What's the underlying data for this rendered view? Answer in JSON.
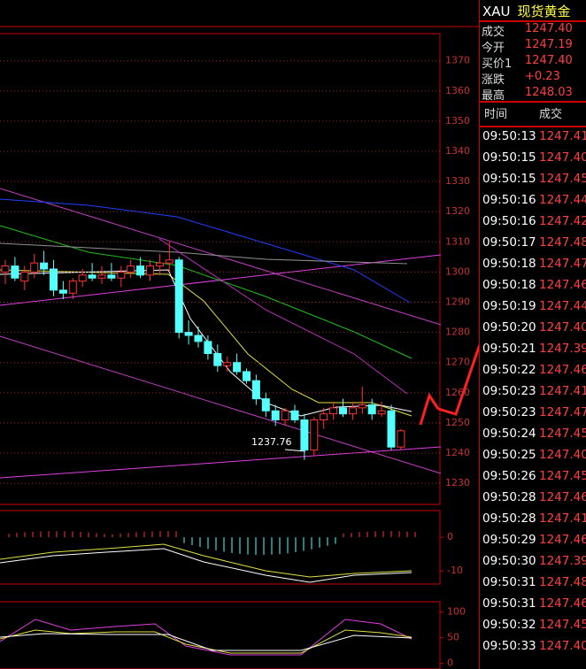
{
  "header": {
    "symbol": "XAU",
    "name": "现货黄金"
  },
  "quote": [
    {
      "label": "成交",
      "value": "1247.40"
    },
    {
      "label": "今开",
      "value": "1247.19"
    },
    {
      "label": "买价1",
      "value": "1247.40"
    },
    {
      "label": "涨跌",
      "value": "+0.23"
    },
    {
      "label": "最高",
      "value": "1248.03"
    }
  ],
  "trades_header": {
    "time": "时间",
    "price": "成交"
  },
  "trades": [
    [
      "09:50:13",
      "1247.41"
    ],
    [
      "09:50:15",
      "1247.40"
    ],
    [
      "09:50:15",
      "1247.45"
    ],
    [
      "09:50:16",
      "1247.44"
    ],
    [
      "09:50:16",
      "1247.42"
    ],
    [
      "09:50:17",
      "1247.48"
    ],
    [
      "09:50:18",
      "1247.47"
    ],
    [
      "09:50:18",
      "1247.46"
    ],
    [
      "09:50:19",
      "1247.44"
    ],
    [
      "09:50:20",
      "1247.40"
    ],
    [
      "09:50:21",
      "1247.39"
    ],
    [
      "09:50:22",
      "1247.46"
    ],
    [
      "09:50:23",
      "1247.41"
    ],
    [
      "09:50:23",
      "1247.47"
    ],
    [
      "09:50:24",
      "1247.45"
    ],
    [
      "09:50:25",
      "1247.40"
    ],
    [
      "09:50:26",
      "1247.45"
    ],
    [
      "09:50:28",
      "1247.46"
    ],
    [
      "09:50:28",
      "1247.41"
    ],
    [
      "09:50:29",
      "1247.46"
    ],
    [
      "09:50:30",
      "1247.39"
    ],
    [
      "09:50:31",
      "1247.48"
    ],
    [
      "09:50:31",
      "1247.46"
    ],
    [
      "09:50:32",
      "1247.45"
    ],
    [
      "09:50:33",
      "1247.40"
    ]
  ],
  "chart_data": {
    "type": "candlestick",
    "annotation": "1237.76",
    "ylim": [
      1223,
      1379
    ],
    "yticks": [
      1230,
      1240,
      1250,
      1260,
      1270,
      1280,
      1290,
      1300,
      1310,
      1320,
      1330,
      1340,
      1350,
      1360,
      1370
    ],
    "up_color": "#ff3232",
    "down_color": "#54ffff",
    "candles": {
      "open": [
        1300,
        1302,
        1297,
        1300,
        1303,
        1301,
        1294,
        1293,
        1297,
        1299,
        1298,
        1299,
        1298,
        1300,
        1302,
        1299,
        1302,
        1303,
        1304,
        1280,
        1279,
        1277,
        1273,
        1269,
        1270,
        1267,
        1264,
        1258,
        1254,
        1251,
        1254,
        1251,
        1241,
        1251,
        1253,
        1255,
        1253,
        1255,
        1256,
        1253,
        1254,
        1242
      ],
      "high": [
        1304,
        1305,
        1302,
        1306,
        1307,
        1304,
        1297,
        1298,
        1301,
        1303,
        1302,
        1303,
        1302,
        1304,
        1305,
        1304,
        1306,
        1310,
        1305,
        1284,
        1282,
        1279,
        1276,
        1272,
        1273,
        1268,
        1266,
        1260,
        1256,
        1255,
        1256,
        1253,
        1252,
        1255,
        1257,
        1258,
        1257,
        1262,
        1258,
        1257,
        1256,
        1248
      ],
      "low": [
        1296,
        1297,
        1294,
        1298,
        1299,
        1292,
        1291,
        1291,
        1295,
        1297,
        1296,
        1297,
        1295,
        1298,
        1298,
        1297,
        1299,
        1300,
        1278,
        1276,
        1275,
        1271,
        1267,
        1267,
        1266,
        1263,
        1256,
        1252,
        1249,
        1249,
        1250,
        1237.76,
        1239,
        1248,
        1251,
        1252,
        1251,
        1253,
        1251,
        1252,
        1241,
        1241
      ],
      "close": [
        1302,
        1298,
        1300,
        1303,
        1301,
        1294,
        1293,
        1297,
        1299,
        1298,
        1299,
        1298,
        1300,
        1302,
        1299,
        1302,
        1303,
        1304,
        1280,
        1279,
        1277,
        1273,
        1269,
        1270,
        1267,
        1264,
        1258,
        1254,
        1251,
        1254,
        1251,
        1241,
        1251,
        1253,
        1255,
        1253,
        1255,
        1256,
        1253,
        1254,
        1242,
        1247.4
      ]
    }
  },
  "macd": {
    "ylim": [
      -13.9,
      7.9
    ],
    "yticks": [
      0,
      -10
    ]
  },
  "kdj": {
    "ylim": [
      -10.9,
      120
    ],
    "yticks": [
      0,
      50,
      100
    ]
  }
}
